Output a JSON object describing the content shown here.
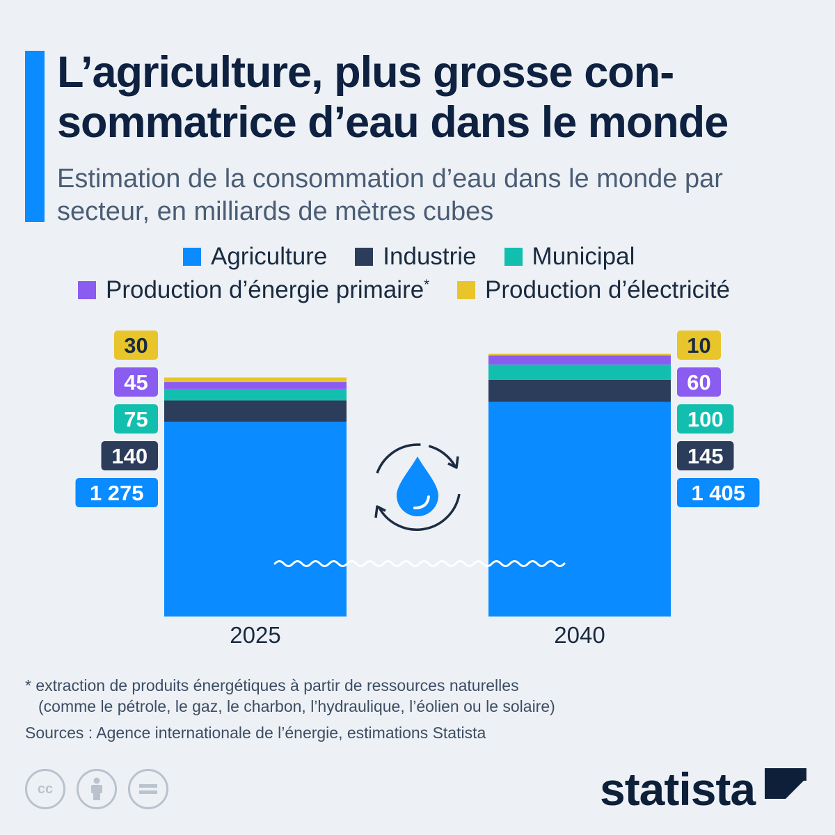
{
  "header": {
    "title": "L’agriculture, plus grosse con-sommatrice d’eau dans le monde",
    "subtitle": "Estimation de la consommation d’eau dans le monde par secteur, en milliards de mètres cubes"
  },
  "legend": {
    "agriculture": "Agriculture",
    "industrie": "Industrie",
    "municipal": "Municipal",
    "energie": "Production d’énergie primaire",
    "energie_mark": "*",
    "electricite": "Production d’électricité"
  },
  "colors": {
    "agriculture": "#0a8bff",
    "industrie": "#2b3d5a",
    "municipal": "#12bfae",
    "energie": "#8a5cf0",
    "electricite": "#e8c52a",
    "accent": "#0a8bff",
    "background": "#edf1f5"
  },
  "chart_data": {
    "type": "bar",
    "stacked": true,
    "categories": [
      "2025",
      "2040"
    ],
    "series": [
      {
        "name": "Agriculture",
        "values": [
          1275,
          1405
        ],
        "labels": [
          "1 275",
          "1 405"
        ]
      },
      {
        "name": "Industrie",
        "values": [
          140,
          145
        ],
        "labels": [
          "140",
          "145"
        ]
      },
      {
        "name": "Municipal",
        "values": [
          75,
          100
        ],
        "labels": [
          "75",
          "100"
        ]
      },
      {
        "name": "Production d’énergie primaire",
        "values": [
          45,
          60
        ],
        "labels": [
          "45",
          "60"
        ]
      },
      {
        "name": "Production d’électricité",
        "values": [
          30,
          10
        ],
        "labels": [
          "30",
          "10"
        ]
      }
    ],
    "title": "L’agriculture, plus grosse con-sommatrice d’eau dans le monde",
    "xlabel": "",
    "ylabel": "",
    "grid": false,
    "legend_position": "top"
  },
  "footer": {
    "footnote_line1": "* extraction de produits énergétiques à partir de ressources naturelles",
    "footnote_line2": "(comme le pétrole, le gaz, le charbon, l’hydraulique, l’éolien ou le solaire)",
    "sources": "Sources : Agence internationale de l’énergie, estimations Statista",
    "brand": "statista",
    "cc_label": "cc",
    "cc_icons": [
      "cc-icon",
      "attribution-icon",
      "no-derivatives-icon"
    ]
  },
  "decorations": {
    "center_icon": "water-recycle-icon",
    "wave": "wave-line"
  }
}
